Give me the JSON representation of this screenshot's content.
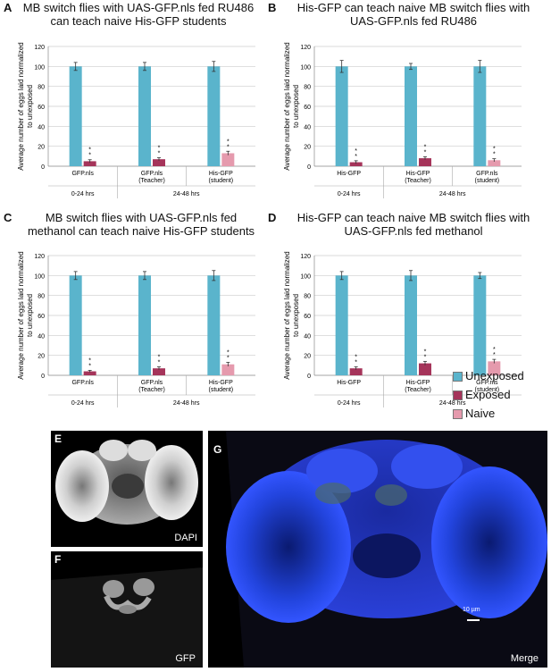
{
  "panels": [
    {
      "letter": "A",
      "title_line1": "MB switch flies with UAS-GFP.nls fed RU486",
      "title_line2": "can teach naive His-GFP students"
    },
    {
      "letter": "B",
      "title_line1": "His-GFP can teach naive MB switch flies with",
      "title_line2": "UAS-GFP.nls fed RU486"
    },
    {
      "letter": "C",
      "title_line1": "MB switch flies with UAS-GFP.nls fed",
      "title_line2": "methanol can teach naive His-GFP students"
    },
    {
      "letter": "D",
      "title_line1": "His-GFP can teach naive MB switch flies with",
      "title_line2": "UAS-GFP.nls fed methanol"
    }
  ],
  "legend": [
    {
      "label": "Unexposed",
      "color": "#5ab4cc"
    },
    {
      "label": "Exposed",
      "color": "#a5345a"
    },
    {
      "label": "Naive",
      "color": "#e59aad"
    }
  ],
  "chart_data": [
    {
      "type": "bar",
      "ylabel_line1": "Average number of eggs laid normalized",
      "ylabel_line2": "to unexposed",
      "ylim": [
        0,
        120
      ],
      "yticks": [
        0,
        20,
        40,
        60,
        80,
        100,
        120
      ],
      "groups": [
        {
          "name_line1": "GFP.nls",
          "name_line2": "",
          "unexposed": 100,
          "unexposed_err": 4,
          "treated": 5,
          "treated_err": 1.5,
          "treated_kind": "exposed",
          "stars": "**"
        },
        {
          "name_line1": "GFP.nls",
          "name_line2": "(Teacher)",
          "unexposed": 100,
          "unexposed_err": 4,
          "treated": 7,
          "treated_err": 1.5,
          "treated_kind": "exposed",
          "stars": "**"
        },
        {
          "name_line1": "His-GFP",
          "name_line2": "(student)",
          "unexposed": 100,
          "unexposed_err": 5,
          "treated": 13,
          "treated_err": 2,
          "treated_kind": "naive",
          "stars": "**"
        }
      ],
      "time_labels": [
        "0-24 hrs",
        "24-48 hrs"
      ]
    },
    {
      "type": "bar",
      "ylabel_line1": "Average number of eggs laid normalized",
      "ylabel_line2": "to unexposed",
      "ylim": [
        0,
        120
      ],
      "yticks": [
        0,
        20,
        40,
        60,
        80,
        100,
        120
      ],
      "groups": [
        {
          "name_line1": "His-GFP",
          "name_line2": "",
          "unexposed": 100,
          "unexposed_err": 6,
          "treated": 4,
          "treated_err": 1.5,
          "treated_kind": "exposed",
          "stars": "**"
        },
        {
          "name_line1": "His-GFP",
          "name_line2": "(Teacher)",
          "unexposed": 100,
          "unexposed_err": 3,
          "treated": 8,
          "treated_err": 1.5,
          "treated_kind": "exposed",
          "stars": "**"
        },
        {
          "name_line1": "GFP.nls",
          "name_line2": "(student)",
          "unexposed": 100,
          "unexposed_err": 6,
          "treated": 6,
          "treated_err": 1.5,
          "treated_kind": "naive",
          "stars": "**"
        }
      ],
      "time_labels": [
        "0-24 hrs",
        "24-48 hrs"
      ]
    },
    {
      "type": "bar",
      "ylabel_line1": "Average number of eggs laid normalized",
      "ylabel_line2": "to unexposed",
      "ylim": [
        0,
        120
      ],
      "yticks": [
        0,
        20,
        40,
        60,
        80,
        100,
        120
      ],
      "groups": [
        {
          "name_line1": "GFP.nls",
          "name_line2": "",
          "unexposed": 100,
          "unexposed_err": 4,
          "treated": 4,
          "treated_err": 1,
          "treated_kind": "exposed",
          "stars": "**"
        },
        {
          "name_line1": "GFP.nls",
          "name_line2": "(Teacher)",
          "unexposed": 100,
          "unexposed_err": 4,
          "treated": 7,
          "treated_err": 1.5,
          "treated_kind": "exposed",
          "stars": "**"
        },
        {
          "name_line1": "His-GFP",
          "name_line2": "(student)",
          "unexposed": 100,
          "unexposed_err": 5,
          "treated": 11,
          "treated_err": 2,
          "treated_kind": "naive",
          "stars": "**"
        }
      ],
      "time_labels": [
        "0-24 hrs",
        "24-48 hrs"
      ]
    },
    {
      "type": "bar",
      "ylabel_line1": "Average number of eggs laid normalized",
      "ylabel_line2": "to unexposed",
      "ylim": [
        0,
        120
      ],
      "yticks": [
        0,
        20,
        40,
        60,
        80,
        100,
        120
      ],
      "groups": [
        {
          "name_line1": "His-GFP",
          "name_line2": "",
          "unexposed": 100,
          "unexposed_err": 4,
          "treated": 7,
          "treated_err": 1.5,
          "treated_kind": "exposed",
          "stars": "**"
        },
        {
          "name_line1": "His-GFP",
          "name_line2": "(Teacher)",
          "unexposed": 100,
          "unexposed_err": 5,
          "treated": 12,
          "treated_err": 2,
          "treated_kind": "exposed",
          "stars": "**"
        },
        {
          "name_line1": "GFP.nls",
          "name_line2": "(student)",
          "unexposed": 100,
          "unexposed_err": 3,
          "treated": 14,
          "treated_err": 2,
          "treated_kind": "naive",
          "stars": "**"
        }
      ],
      "time_labels": [
        "0-24 hrs",
        "24-48 hrs"
      ]
    }
  ],
  "images": [
    {
      "letter": "E",
      "caption": "DAPI"
    },
    {
      "letter": "F",
      "caption": "GFP"
    },
    {
      "letter": "G",
      "caption": "Merge",
      "scalebar": "10 µm"
    }
  ]
}
